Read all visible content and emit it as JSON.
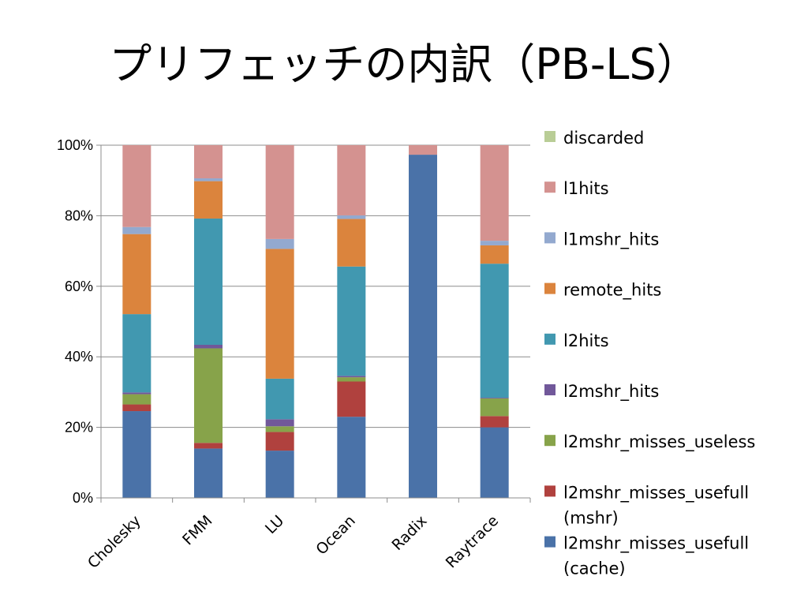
{
  "slide": {
    "title": "プリフェッチの内訳（PB-LS）"
  },
  "chart_data": {
    "type": "bar",
    "stacked": true,
    "normalized": true,
    "title": "",
    "xlabel": "",
    "ylabel": "",
    "ylim": [
      0,
      100
    ],
    "y_ticks": [
      "0%",
      "20%",
      "40%",
      "60%",
      "80%",
      "100%"
    ],
    "grid": true,
    "legend_position": "right",
    "categories": [
      "Cholesky",
      "FMM",
      "LU",
      "Ocean",
      "Radix",
      "Raytrace"
    ],
    "series": [
      {
        "name": "l2mshr_misses_usefull (cache)",
        "color": "#4a72a8",
        "values": [
          24.6,
          14.0,
          13.4,
          23.0,
          97.3,
          20.0
        ]
      },
      {
        "name": "l2mshr_misses_usefull (mshr)",
        "color": "#b0413e",
        "values": [
          1.9,
          1.6,
          5.3,
          10.0,
          0.0,
          3.2
        ]
      },
      {
        "name": "l2mshr_misses_useless",
        "color": "#87a34a",
        "values": [
          2.9,
          26.8,
          1.6,
          1.2,
          0.0,
          5.0
        ]
      },
      {
        "name": "l2mshr_hits",
        "color": "#71589a",
        "values": [
          0.5,
          1.0,
          2.0,
          0.4,
          0.0,
          0.2
        ]
      },
      {
        "name": "l2hits",
        "color": "#4198b0",
        "values": [
          22.2,
          35.8,
          11.5,
          31.0,
          0.0,
          38.0
        ]
      },
      {
        "name": "remote_hits",
        "color": "#db843d",
        "values": [
          22.7,
          10.6,
          36.8,
          13.5,
          0.0,
          5.2
        ]
      },
      {
        "name": "l1mshr_hits",
        "color": "#93a9cf",
        "values": [
          2.0,
          0.8,
          2.8,
          1.0,
          0.0,
          1.3
        ]
      },
      {
        "name": "l1hits",
        "color": "#d49290",
        "values": [
          23.2,
          9.4,
          26.6,
          19.9,
          2.7,
          27.1
        ]
      },
      {
        "name": "discarded",
        "color": "#b9cd96",
        "values": [
          0.0,
          0.0,
          0.0,
          0.0,
          0.0,
          0.0
        ]
      }
    ],
    "legend": [
      {
        "lines": [
          "discarded"
        ],
        "color": "#b9cd96"
      },
      {
        "lines": [
          "l1hits"
        ],
        "color": "#d49290"
      },
      {
        "lines": [
          "l1mshr_hits"
        ],
        "color": "#93a9cf"
      },
      {
        "lines": [
          "remote_hits"
        ],
        "color": "#db843d"
      },
      {
        "lines": [
          "l2hits"
        ],
        "color": "#4198b0"
      },
      {
        "lines": [
          "l2mshr_hits"
        ],
        "color": "#71589a"
      },
      {
        "lines": [
          "l2mshr_misses_useless"
        ],
        "color": "#87a34a"
      },
      {
        "lines": [
          "l2mshr_misses_usefull",
          "(mshr)"
        ],
        "color": "#b0413e"
      },
      {
        "lines": [
          "l2mshr_misses_usefull",
          "(cache)"
        ],
        "color": "#4a72a8"
      }
    ]
  }
}
